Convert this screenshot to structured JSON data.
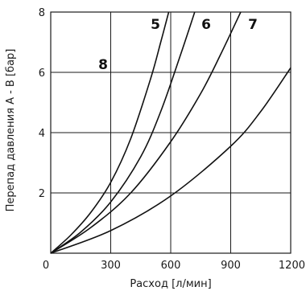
{
  "chart_data": {
    "type": "line",
    "xlabel": "Расход [л/мин]",
    "ylabel": "Перепад давления A - B [бар]",
    "xlim": [
      0,
      1200
    ],
    "ylim": [
      0,
      8
    ],
    "x_ticks": [
      "0",
      "300",
      "600",
      "900",
      "1200"
    ],
    "y_ticks": [
      "2",
      "4",
      "6",
      "8"
    ],
    "grid": true,
    "series": [
      {
        "name": "5",
        "x": [
          0,
          100,
          200,
          300,
          400,
          500,
          550,
          590
        ],
        "y": [
          0,
          0.6,
          1.35,
          2.35,
          3.8,
          5.8,
          7.0,
          8.0
        ]
      },
      {
        "name": "6",
        "x": [
          0,
          150,
          300,
          450,
          550,
          650,
          720
        ],
        "y": [
          0,
          0.7,
          1.7,
          3.2,
          4.7,
          6.6,
          8.0
        ]
      },
      {
        "name": "7",
        "x": [
          0,
          200,
          400,
          600,
          750,
          850,
          950
        ],
        "y": [
          0,
          0.85,
          2.0,
          3.7,
          5.3,
          6.6,
          8.0
        ]
      },
      {
        "name": "8",
        "x": [
          0,
          300,
          600,
          900,
          1050,
          1200
        ],
        "y": [
          0,
          0.75,
          1.9,
          3.55,
          4.7,
          6.15
        ]
      }
    ],
    "curve_labels": [
      "5",
      "6",
      "7",
      "8"
    ]
  }
}
